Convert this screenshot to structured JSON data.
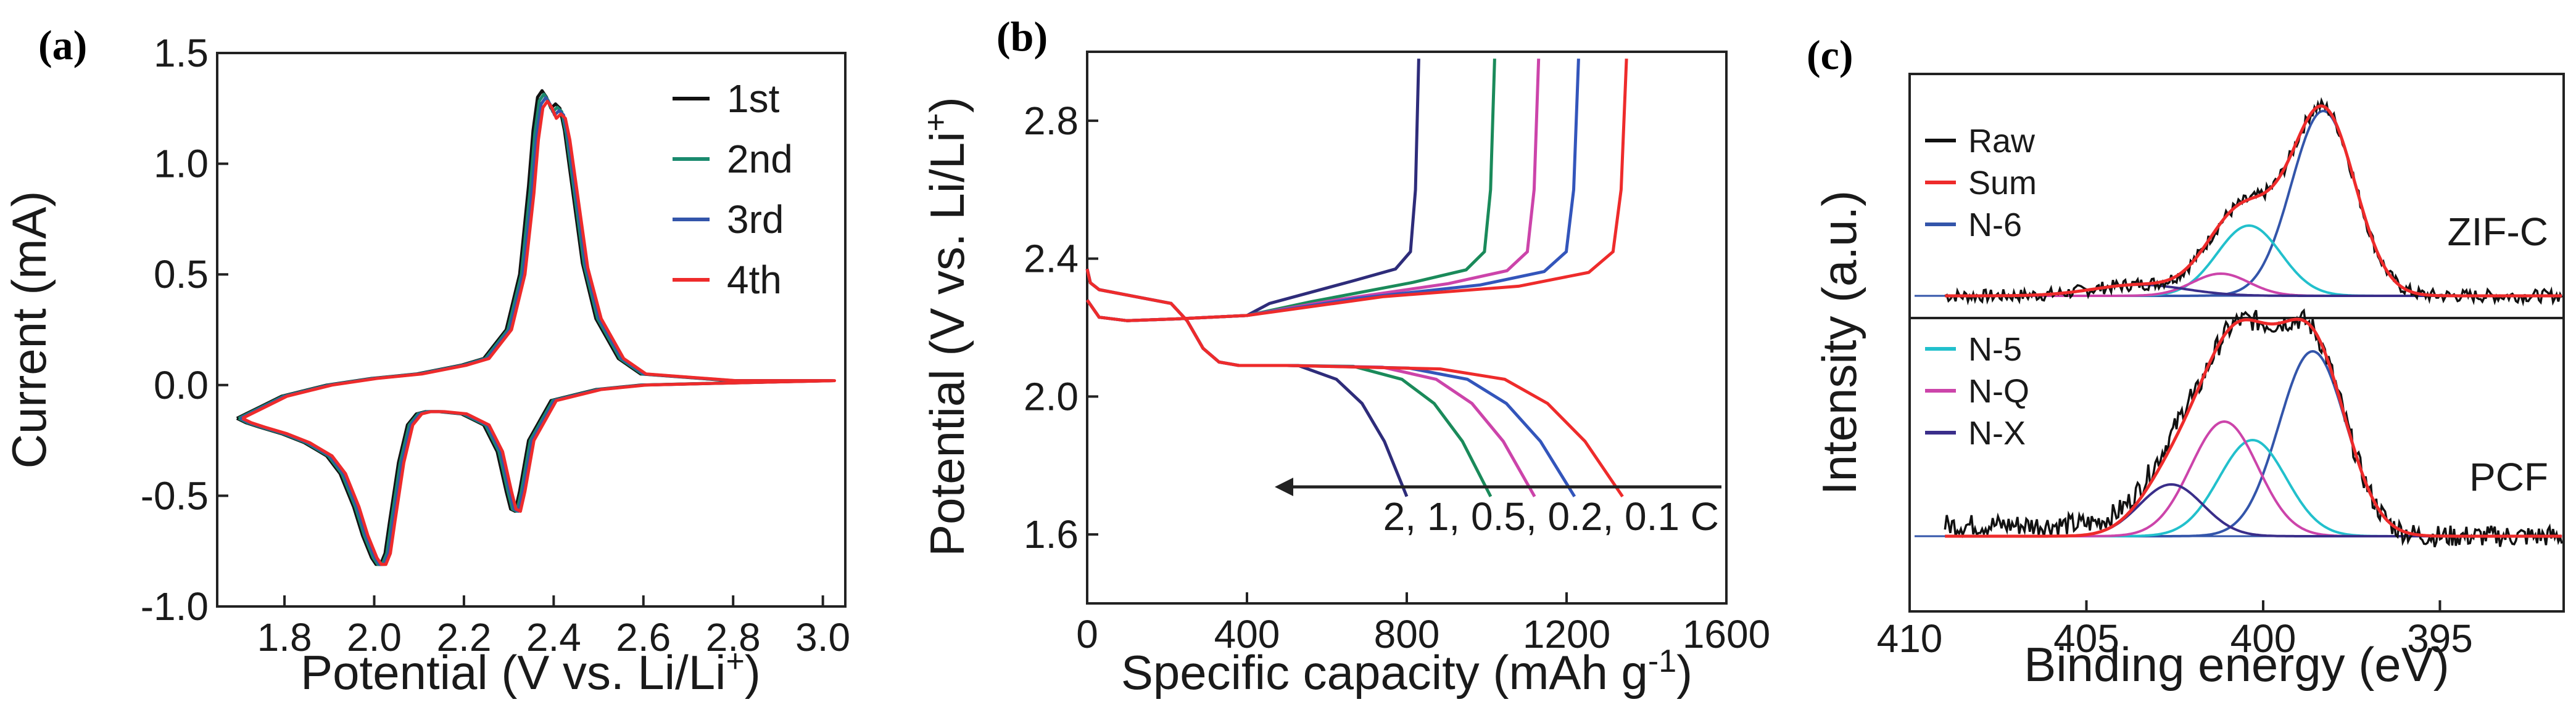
{
  "chart_data": [
    {
      "panel": "(a)",
      "type": "line",
      "xlabel": "Potential (V vs. Li/Li",
      "xlabel_sup": "+",
      "xlabel_end": ")",
      "ylabel": "Current (mA)",
      "xlim": [
        1.65,
        3.05
      ],
      "ylim": [
        -1.0,
        1.5
      ],
      "xticks": [
        "1.8",
        "2.0",
        "2.2",
        "2.4",
        "2.6",
        "2.8",
        "3.0"
      ],
      "yticks": [
        "-1.0",
        "-0.5",
        "0.0",
        "0.5",
        "1.0",
        "1.5"
      ],
      "legend_position": "top-right",
      "series": [
        {
          "name": "1st",
          "color": "#111111"
        },
        {
          "name": "2nd",
          "color": "#1a8a6e"
        },
        {
          "name": "3rd",
          "color": "#3355aa"
        },
        {
          "name": "4th",
          "color": "#ee2b2b"
        }
      ],
      "reduction_branch": {
        "x": [
          1.7,
          1.72,
          1.75,
          1.8,
          1.85,
          1.9,
          1.93,
          1.96,
          1.98,
          2.0,
          2.01,
          2.02,
          2.03,
          2.04,
          2.06,
          2.08,
          2.1,
          2.12,
          2.15,
          2.2,
          2.25,
          2.28,
          2.3,
          2.31,
          2.32,
          2.33,
          2.35,
          2.4,
          2.5,
          2.6,
          2.8,
          3.02
        ],
        "y": [
          -0.15,
          -0.17,
          -0.19,
          -0.22,
          -0.26,
          -0.32,
          -0.4,
          -0.55,
          -0.68,
          -0.78,
          -0.81,
          -0.81,
          -0.76,
          -0.62,
          -0.35,
          -0.18,
          -0.13,
          -0.12,
          -0.12,
          -0.13,
          -0.18,
          -0.3,
          -0.48,
          -0.56,
          -0.57,
          -0.48,
          -0.25,
          -0.07,
          -0.02,
          0.0,
          0.01,
          0.02
        ]
      },
      "oxidation_branch": {
        "x": [
          3.02,
          2.8,
          2.6,
          2.55,
          2.5,
          2.47,
          2.45,
          2.43,
          2.42,
          2.41,
          2.4,
          2.39,
          2.38,
          2.37,
          2.36,
          2.35,
          2.33,
          2.3,
          2.25,
          2.2,
          2.1,
          2.0,
          1.9,
          1.8,
          1.75,
          1.72,
          1.7
        ],
        "y": [
          0.02,
          0.02,
          0.05,
          0.12,
          0.3,
          0.55,
          0.85,
          1.15,
          1.25,
          1.27,
          1.25,
          1.3,
          1.33,
          1.3,
          1.15,
          0.9,
          0.5,
          0.25,
          0.12,
          0.09,
          0.05,
          0.03,
          0.0,
          -0.05,
          -0.1,
          -0.13,
          -0.15
        ]
      }
    },
    {
      "panel": "(b)",
      "type": "line",
      "xlabel": "Specific capacity (mAh g",
      "xlabel_sup": "-1",
      "xlabel_end": ")",
      "ylabel": "Potential (V vs. Li/Li",
      "ylabel_sup": "+",
      "ylabel_end": ")",
      "xlim": [
        0,
        1600
      ],
      "ylim": [
        1.4,
        3.0
      ],
      "xticks": [
        "0",
        "400",
        "800",
        "1200",
        "1600"
      ],
      "yticks": [
        "1.6",
        "2.0",
        "2.4",
        "2.8"
      ],
      "annotation": "2, 1, 0.5, 0.2, 0.1 C",
      "series": [
        {
          "name": "2 C",
          "color": "#2e2c7a",
          "discharge_capacity": 800,
          "charge_capacity": 830
        },
        {
          "name": "1 C",
          "color": "#1a8a5a",
          "discharge_capacity": 1010,
          "charge_capacity": 1020
        },
        {
          "name": "0.5 C",
          "color": "#cc44aa",
          "discharge_capacity": 1120,
          "charge_capacity": 1130
        },
        {
          "name": "0.2 C",
          "color": "#3355bb",
          "discharge_capacity": 1220,
          "charge_capacity": 1230
        },
        {
          "name": "0.1 C",
          "color": "#ee2b2b",
          "discharge_capacity": 1340,
          "charge_capacity": 1350
        }
      ]
    },
    {
      "panel": "(c)",
      "type": "line",
      "xlabel": "Binding energy (eV)",
      "ylabel": "Intensity (a.u.)",
      "xlim": [
        410,
        391.5
      ],
      "xticks": [
        "410",
        "405",
        "400",
        "395"
      ],
      "legend_top": [
        {
          "name": "Raw",
          "color": "#111111"
        },
        {
          "name": "Sum",
          "color": "#ee2b2b"
        },
        {
          "name": "N-6",
          "color": "#3355aa"
        }
      ],
      "legend_bottom": [
        {
          "name": "N-5",
          "color": "#22c0cc"
        },
        {
          "name": "N-Q",
          "color": "#cc44aa"
        },
        {
          "name": "N-X",
          "color": "#3a2e8a"
        }
      ],
      "samples": [
        {
          "label": "ZIF-C",
          "peaks": [
            {
              "name": "N-6",
              "center": 398.3,
              "height": 1.0,
              "width": 0.9
            },
            {
              "name": "N-5",
              "center": 400.4,
              "height": 0.38,
              "width": 0.9
            },
            {
              "name": "N-Q",
              "center": 401.2,
              "height": 0.12,
              "width": 0.8
            },
            {
              "name": "N-X",
              "center": 403.5,
              "height": 0.06,
              "width": 1.3
            }
          ]
        },
        {
          "label": "PCF",
          "peaks": [
            {
              "name": "N-6",
              "center": 398.6,
              "height": 1.0,
              "width": 0.95
            },
            {
              "name": "N-5",
              "center": 400.3,
              "height": 0.52,
              "width": 0.95
            },
            {
              "name": "N-Q",
              "center": 401.1,
              "height": 0.62,
              "width": 0.95
            },
            {
              "name": "N-X",
              "center": 402.6,
              "height": 0.28,
              "width": 0.9
            }
          ]
        }
      ]
    }
  ]
}
